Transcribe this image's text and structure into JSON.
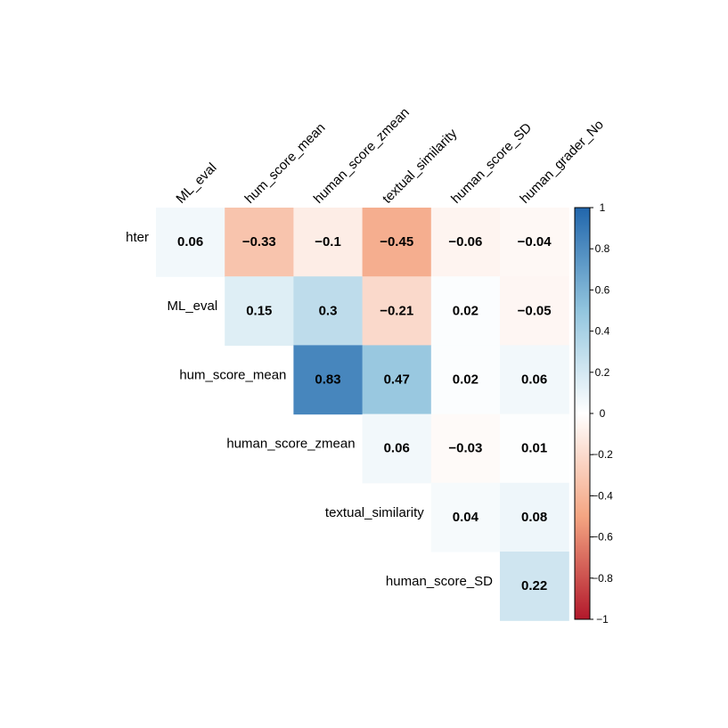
{
  "chart_data": {
    "type": "heatmap",
    "layout": "upper-triangle",
    "columns": [
      "ML_eval",
      "hum_score_mean",
      "human_score_zmean",
      "textual_similarity",
      "human_score_SD",
      "human_grader_No"
    ],
    "rows": [
      "hter",
      "ML_eval",
      "hum_score_mean",
      "human_score_zmean",
      "textual_similarity",
      "human_score_SD"
    ],
    "cells": [
      {
        "row": "hter",
        "column": "ML_eval",
        "value": 0.06,
        "label": "0.06"
      },
      {
        "row": "hter",
        "column": "hum_score_mean",
        "value": -0.33,
        "label": "−0.33"
      },
      {
        "row": "hter",
        "column": "human_score_zmean",
        "value": -0.1,
        "label": "−0.1"
      },
      {
        "row": "hter",
        "column": "textual_similarity",
        "value": -0.45,
        "label": "−0.45"
      },
      {
        "row": "hter",
        "column": "human_score_SD",
        "value": -0.06,
        "label": "−0.06"
      },
      {
        "row": "hter",
        "column": "human_grader_No",
        "value": -0.04,
        "label": "−0.04"
      },
      {
        "row": "ML_eval",
        "column": "hum_score_mean",
        "value": 0.15,
        "label": "0.15"
      },
      {
        "row": "ML_eval",
        "column": "human_score_zmean",
        "value": 0.3,
        "label": "0.3"
      },
      {
        "row": "ML_eval",
        "column": "textual_similarity",
        "value": -0.21,
        "label": "−0.21"
      },
      {
        "row": "ML_eval",
        "column": "human_score_SD",
        "value": 0.02,
        "label": "0.02"
      },
      {
        "row": "ML_eval",
        "column": "human_grader_No",
        "value": -0.05,
        "label": "−0.05"
      },
      {
        "row": "hum_score_mean",
        "column": "human_score_zmean",
        "value": 0.83,
        "label": "0.83"
      },
      {
        "row": "hum_score_mean",
        "column": "textual_similarity",
        "value": 0.47,
        "label": "0.47"
      },
      {
        "row": "hum_score_mean",
        "column": "human_score_SD",
        "value": 0.02,
        "label": "0.02"
      },
      {
        "row": "hum_score_mean",
        "column": "human_grader_No",
        "value": 0.06,
        "label": "0.06"
      },
      {
        "row": "human_score_zmean",
        "column": "textual_similarity",
        "value": 0.06,
        "label": "0.06"
      },
      {
        "row": "human_score_zmean",
        "column": "human_score_SD",
        "value": -0.03,
        "label": "−0.03"
      },
      {
        "row": "human_score_zmean",
        "column": "human_grader_No",
        "value": 0.01,
        "label": "0.01"
      },
      {
        "row": "textual_similarity",
        "column": "human_score_SD",
        "value": 0.04,
        "label": "0.04"
      },
      {
        "row": "textual_similarity",
        "column": "human_grader_No",
        "value": 0.08,
        "label": "0.08"
      },
      {
        "row": "human_score_SD",
        "column": "human_grader_No",
        "value": 0.22,
        "label": "0.22"
      }
    ],
    "colorbar": {
      "range": [
        -1,
        1
      ],
      "ticks": [
        1,
        0.8,
        0.6,
        0.4,
        0.2,
        0,
        -0.2,
        -0.4,
        -0.6,
        -0.8,
        -1
      ],
      "tick_labels": [
        "1",
        "0.8",
        "0.6",
        "0.4",
        "0.2",
        "0",
        "−0.2",
        "−0.4",
        "−0.6",
        "−0.8",
        "−1"
      ],
      "colors": {
        "negative_end": "#b2182b",
        "negative_mid": "#f4a582",
        "zero": "#ffffff",
        "positive_mid": "#92c5de",
        "positive_end": "#2166ac"
      }
    }
  }
}
